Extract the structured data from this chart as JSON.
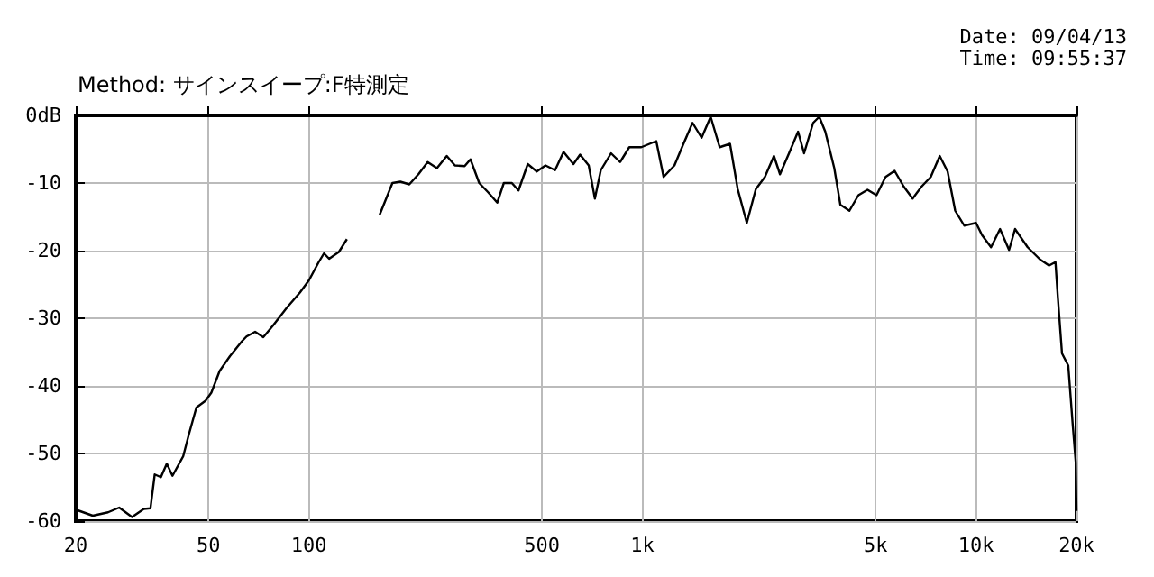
{
  "chart_data": {
    "type": "line",
    "subtitle": "Method: サインスイープ:F特測定",
    "annotations": [
      "Date: 09/04/13",
      "Time: 09:55:37"
    ],
    "log": "x",
    "grid": true,
    "xlim": [
      20,
      20000
    ],
    "xticks": [
      20,
      50,
      100,
      500,
      {
        "value": 1000,
        "label": "1k"
      },
      {
        "value": 5000,
        "label": "5k"
      },
      {
        "value": 10000,
        "label": "10k"
      },
      {
        "value": 20000,
        "label": "20k"
      }
    ],
    "ylim": [
      -60,
      0
    ],
    "yticks": [
      -60,
      -50,
      -40,
      -30,
      -20,
      -10,
      {
        "value": 0,
        "label": "0dB"
      }
    ],
    "series": [
      {
        "color": "#000000",
        "x": [
          20,
          22.5,
          25,
          27,
          29.5,
          32,
          33.5,
          34.5,
          36,
          37.5,
          39,
          42,
          43.6,
          46,
          49,
          51,
          54,
          58,
          63,
          65,
          69,
          73,
          78,
          86,
          94,
          100,
          107,
          111,
          115,
          123,
          130,
          145,
          163,
          178,
          188,
          200,
          213,
          227,
          242,
          259,
          274,
          293,
          305,
          324,
          345,
          367,
          384,
          406,
          425,
          453,
          482,
          512,
          547,
          580,
          621,
          650,
          690,
          720,
          750,
          805,
          857,
          913,
          992,
          1100,
          1157,
          1247,
          1327,
          1413,
          1504,
          1601,
          1704,
          1830,
          1930,
          2055,
          2187,
          2328,
          2478,
          2584,
          2750,
          2927,
          3051,
          3248,
          3388,
          3532,
          3758,
          3919,
          4172,
          4440,
          4726,
          5030,
          5354,
          5700,
          6066,
          6456,
          6872,
          7314,
          7783,
          8218,
          8660,
          9217,
          10000,
          10420,
          11090,
          11800,
          12560,
          13090,
          14280,
          15550,
          16550,
          17300,
          17600,
          18100,
          18900,
          19500,
          19900,
          20000
        ],
        "values": [
          -58.3,
          -59.2,
          -58.7,
          -58.0,
          -59.4,
          -58.2,
          -58.1,
          -53.1,
          -53.5,
          -51.5,
          -53.3,
          -50.4,
          -47.3,
          -43.2,
          -42.2,
          -41,
          -37.8,
          -35.6,
          -33.4,
          -32.7,
          -32.0,
          -32.8,
          -31.1,
          -28.4,
          -26.2,
          -24.4,
          -21.7,
          -20.4,
          -21.2,
          -20.2,
          -18.3,
          null,
          -14.7,
          -10,
          -9.8,
          -10.2,
          -8.7,
          -6.9,
          -7.8,
          -6,
          -7.4,
          -7.5,
          -6.5,
          -10,
          -11.4,
          -12.9,
          -10,
          -10,
          -11.1,
          -7.2,
          -8.3,
          -7.4,
          -8.1,
          -5.4,
          -7.2,
          -5.8,
          -7.4,
          -12.3,
          -8.1,
          -5.6,
          -6.9,
          -4.7,
          -4.7,
          -3.8,
          -9.1,
          -7.4,
          -4.2,
          -1.1,
          -3.3,
          -0.2,
          -4.7,
          -4.2,
          -10.9,
          -15.9,
          -10.9,
          -9.1,
          -6,
          -8.7,
          -5.6,
          -2.4,
          -5.6,
          -1.1,
          -0.2,
          -2.4,
          -7.8,
          -13.2,
          -14.1,
          -11.8,
          -11,
          -11.8,
          -9.1,
          -8.2,
          -10.5,
          -12.3,
          -10.5,
          -9.1,
          -6,
          -8.3,
          -14.1,
          -16.3,
          -15.9,
          -17.7,
          -19.5,
          -16.8,
          -19.9,
          -16.8,
          -19.5,
          -21.3,
          -22.2,
          -21.7,
          -27.1,
          -35.2,
          -37,
          -45.9,
          -51.3,
          -58.5
        ]
      }
    ]
  }
}
